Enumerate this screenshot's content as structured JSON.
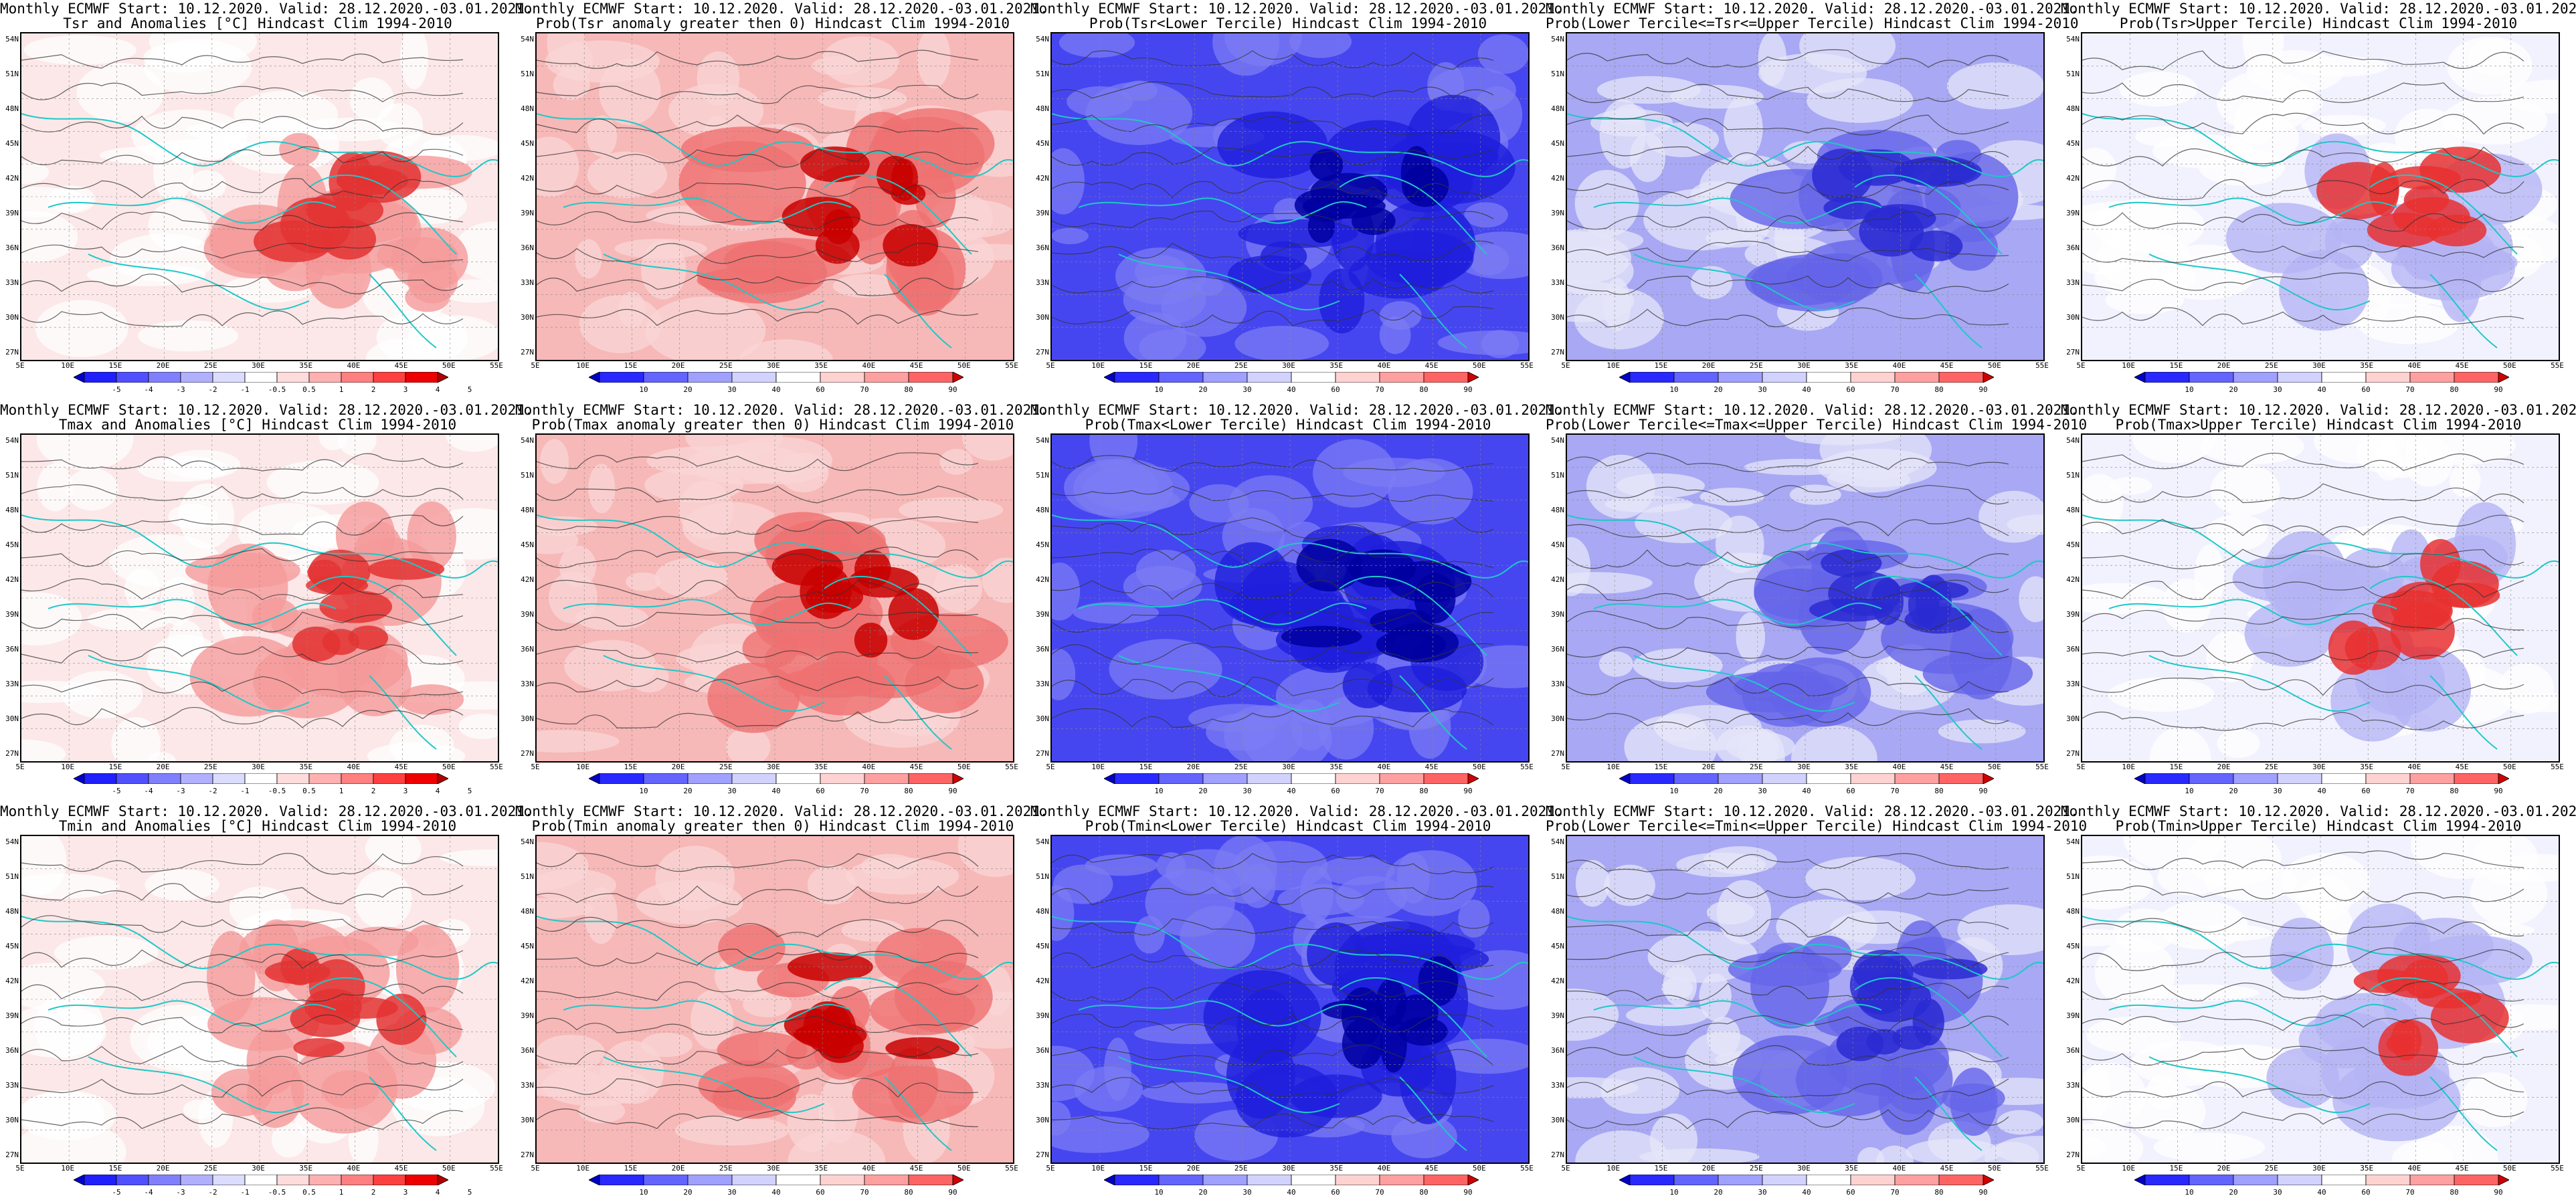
{
  "header_line1": "Monthly ECMWF Start: 10.12.2020. Valid: 28.12.2020.-03.01.2021.",
  "panels": [
    [
      {
        "title": "Tsr and Anomalies [°C] Hindcast Clim 1994-2010",
        "scheme": "anomaly"
      },
      {
        "title": "Prob(Tsr anomaly greater then 0) Hindcast Clim 1994-2010",
        "scheme": "warm"
      },
      {
        "title": "Prob(Tsr<Lower Tercile) Hindcast Clim 1994-2010",
        "scheme": "cold"
      },
      {
        "title": "Prob(Lower Tercile<=Tsr<=Upper Tercile) Hindcast Clim 1994-2010",
        "scheme": "normal"
      },
      {
        "title": "Prob(Tsr>Upper Tercile) Hindcast Clim 1994-2010",
        "scheme": "upper"
      }
    ],
    [
      {
        "title": "Tmax and Anomalies [°C] Hindcast Clim 1994-2010",
        "scheme": "anomaly"
      },
      {
        "title": "Prob(Tmax anomaly greater then 0) Hindcast Clim 1994-2010",
        "scheme": "warm"
      },
      {
        "title": "Prob(Tmax<Lower Tercile) Hindcast Clim 1994-2010",
        "scheme": "cold"
      },
      {
        "title": "Prob(Lower Tercile<=Tmax<=Upper Tercile) Hindcast Clim 1994-2010",
        "scheme": "normal"
      },
      {
        "title": "Prob(Tmax>Upper Tercile) Hindcast Clim 1994-2010",
        "scheme": "upper"
      }
    ],
    [
      {
        "title": "Tmin and Anomalies [°C] Hindcast Clim 1994-2010",
        "scheme": "anomaly"
      },
      {
        "title": "Prob(Tmin anomaly greater then 0) Hindcast Clim 1994-2010",
        "scheme": "warm"
      },
      {
        "title": "Prob(Tmin<Lower Tercile) Hindcast Clim 1994-2010",
        "scheme": "cold"
      },
      {
        "title": "Prob(Lower Tercile<=Tmin<=Upper Tercile) Hindcast Clim 1994-2010",
        "scheme": "normal"
      },
      {
        "title": "Prob(Tmin>Upper Tercile) Hindcast Clim 1994-2010",
        "scheme": "upper"
      }
    ]
  ],
  "lat_labels": [
    "54N",
    "51N",
    "48N",
    "45N",
    "42N",
    "39N",
    "36N",
    "33N",
    "30N",
    "27N"
  ],
  "lon_labels": [
    "5E",
    "10E",
    "15E",
    "20E",
    "25E",
    "30E",
    "35E",
    "40E",
    "45E",
    "50E",
    "55E"
  ],
  "anomaly_scale": {
    "labels": [
      "-5",
      "-4",
      "-3",
      "-2",
      "-1",
      "-0.5",
      "0.5",
      "1",
      "2",
      "3",
      "4",
      "5"
    ],
    "colors": [
      "#0000cc",
      "#2020ff",
      "#5050ff",
      "#8080ff",
      "#b0b0ff",
      "#dcdcff",
      "#ffffff",
      "#ffdcdc",
      "#ffb0b0",
      "#ff8080",
      "#ff4040",
      "#ee0000",
      "#b00000"
    ]
  },
  "prob_scale": {
    "labels": [
      "10",
      "20",
      "30",
      "40",
      "60",
      "70",
      "80",
      "90"
    ],
    "colors": [
      "#0000c8",
      "#2828ff",
      "#6464ff",
      "#a0a0ff",
      "#d2d2ff",
      "#ffffff",
      "#ffd2d2",
      "#ffa0a0",
      "#ff6464",
      "#d00000"
    ]
  },
  "scheme_colors": {
    "anomaly": {
      "base": "#fce8e8",
      "mid": "#f59a9a",
      "core": "#e33232",
      "bg2": "#ffffff"
    },
    "warm": {
      "base": "#f7b8b8",
      "mid": "#ef7070",
      "core": "#c80000",
      "bg2": "#fad6d6"
    },
    "cold": {
      "base": "#4646f0",
      "mid": "#1e1edc",
      "core": "#0000a0",
      "bg2": "#7c7cf5"
    },
    "normal": {
      "base": "#a8a8f4",
      "mid": "#6464ea",
      "core": "#2a2ad2",
      "bg2": "#e6e6fa"
    },
    "upper": {
      "base": "#f2f2ff",
      "mid": "#b4b4f5",
      "core": "#e83030",
      "bg2": "#ffffff"
    }
  }
}
